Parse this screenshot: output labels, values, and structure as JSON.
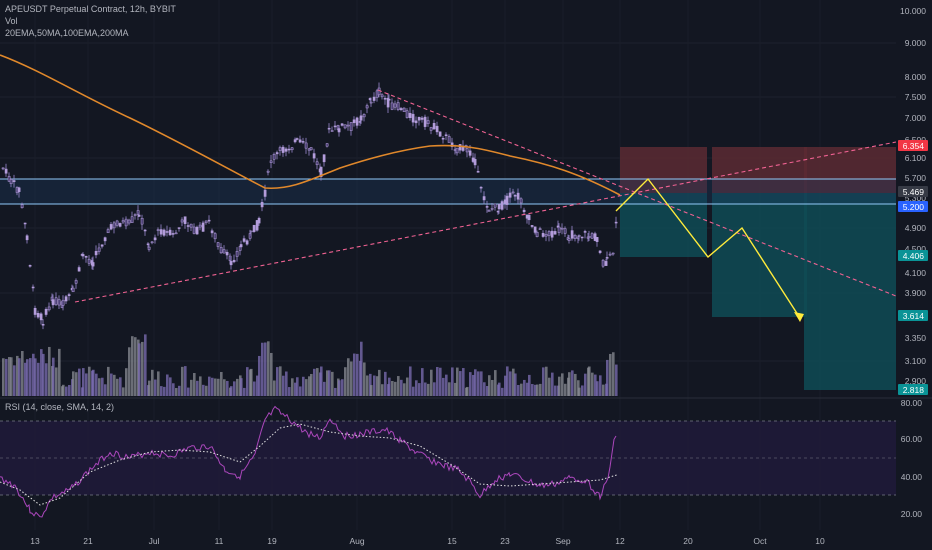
{
  "header": {
    "symbol_line": "APEUSDT Perpetual Contract, 12h, BYBIT",
    "vol_label": "Vol",
    "ma_label": "20EMA,50MA,100EMA,200MA"
  },
  "rsi_panel": {
    "label": "RSI (14, close, SMA, 14, 2)",
    "ticks": [
      "80.00",
      "60.00",
      "40.00",
      "20.00"
    ]
  },
  "price_axis": {
    "ticks": [
      "10.000",
      "9.000",
      "8.000",
      "7.500",
      "7.000",
      "6.500",
      "6.100",
      "5.700",
      "5.300",
      "4.900",
      "4.500",
      "4.100",
      "3.900",
      "3.350",
      "3.100",
      "2.900"
    ]
  },
  "price_tags": [
    {
      "text": "6.354",
      "color": "#f23645"
    },
    {
      "text": "5.469",
      "color": "#363a45"
    },
    {
      "text": "5.200",
      "color": "#2962ff"
    },
    {
      "text": "4.406",
      "color": "#0a9396"
    },
    {
      "text": "3.614",
      "color": "#0a9396"
    },
    {
      "text": "2.818",
      "color": "#0a9396"
    }
  ],
  "time_axis": {
    "labels": [
      "13",
      "21",
      "Jul",
      "11",
      "19",
      "Aug",
      "15",
      "23",
      "Sep",
      "12",
      "20",
      "Oct",
      "10"
    ]
  },
  "colors": {
    "background": "#131722",
    "candle": "#b39ddb",
    "ma_line": "#e0882b",
    "trend_line": "#f06292",
    "horizontal_line": "#90caf9",
    "forecast_path": "#ffeb3b",
    "stop_zone": "#7a2e36",
    "target_zone": "#145a63",
    "rsi_line": "#ab47bc"
  }
}
